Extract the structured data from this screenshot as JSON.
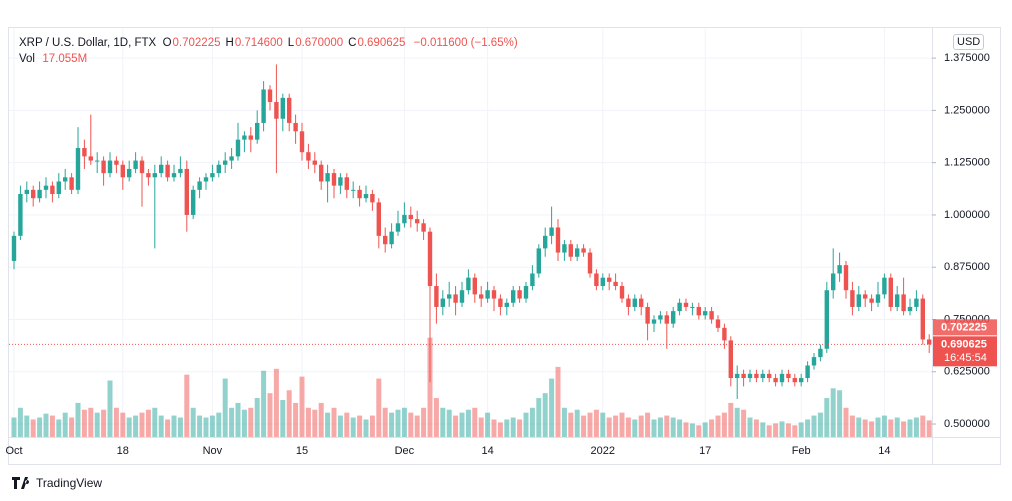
{
  "chart_data": {
    "type": "candlestick",
    "header": {
      "symbol": "XRP / U.S. Dollar, 1D, FTX",
      "ohlc": [
        {
          "label": "O",
          "value": "0.702225"
        },
        {
          "label": "H",
          "value": "0.714600"
        },
        {
          "label": "L",
          "value": "0.670000"
        },
        {
          "label": "C",
          "value": "0.690625"
        }
      ],
      "change": "−0.011600 (−1.65%)",
      "volume_label": "Vol",
      "volume_value": "17.055M"
    },
    "currency": "USD",
    "branding": "TradingView",
    "up_color": "#26a69a",
    "down_color": "#ef5350",
    "ylim": [
      0.469,
      1.447
    ],
    "yticks": [
      {
        "value": 0.5,
        "label": "0.500000"
      },
      {
        "value": 0.625,
        "label": "0.625000"
      },
      {
        "value": 0.75,
        "label": "0.750000"
      },
      {
        "value": 0.875,
        "label": "0.875000"
      },
      {
        "value": 1.0,
        "label": "1.000000"
      },
      {
        "value": 1.125,
        "label": "1.125000"
      },
      {
        "value": 1.25,
        "label": "1.250000"
      },
      {
        "value": 1.375,
        "label": "1.375000"
      }
    ],
    "volume_lim": [
      0,
      420
    ],
    "grid": true,
    "price_tags": {
      "open": {
        "value": 0.702225,
        "label": "0.702225"
      },
      "last": {
        "value": 0.690625,
        "label": "0.690625"
      },
      "countdown": "16:45:54"
    },
    "categories": [
      "Oct",
      null,
      null,
      null,
      null,
      null,
      null,
      null,
      null,
      null,
      null,
      null,
      null,
      null,
      null,
      null,
      null,
      "18",
      null,
      null,
      null,
      null,
      null,
      null,
      null,
      null,
      null,
      null,
      null,
      null,
      null,
      "Nov",
      null,
      null,
      null,
      null,
      null,
      null,
      null,
      null,
      null,
      null,
      null,
      null,
      null,
      "15",
      null,
      null,
      null,
      null,
      null,
      null,
      null,
      null,
      null,
      null,
      null,
      null,
      null,
      null,
      null,
      "Dec",
      null,
      null,
      null,
      null,
      null,
      null,
      null,
      null,
      null,
      null,
      null,
      null,
      "14",
      null,
      null,
      null,
      null,
      null,
      null,
      null,
      null,
      null,
      null,
      null,
      null,
      null,
      null,
      null,
      null,
      null,
      "2022",
      null,
      null,
      null,
      null,
      null,
      null,
      null,
      null,
      null,
      null,
      null,
      null,
      null,
      null,
      null,
      "17",
      null,
      null,
      null,
      null,
      null,
      null,
      null,
      null,
      null,
      null,
      null,
      null,
      null,
      null,
      "Feb",
      null,
      null,
      null,
      null,
      null,
      null,
      null,
      null,
      null,
      null,
      null,
      null,
      "14",
      null,
      null,
      null,
      null,
      null,
      null,
      null
    ],
    "ohlc": [
      [
        0.89,
        0.96,
        0.87,
        0.95
      ],
      [
        0.95,
        1.07,
        0.94,
        1.05
      ],
      [
        1.05,
        1.08,
        1.03,
        1.06
      ],
      [
        1.06,
        1.07,
        1.02,
        1.04
      ],
      [
        1.04,
        1.08,
        1.03,
        1.06
      ],
      [
        1.06,
        1.09,
        1.04,
        1.07
      ],
      [
        1.07,
        1.08,
        1.03,
        1.05
      ],
      [
        1.05,
        1.1,
        1.04,
        1.08
      ],
      [
        1.08,
        1.11,
        1.06,
        1.09
      ],
      [
        1.09,
        1.1,
        1.05,
        1.06
      ],
      [
        1.06,
        1.21,
        1.05,
        1.16
      ],
      [
        1.16,
        1.18,
        1.11,
        1.14
      ],
      [
        1.14,
        1.24,
        1.12,
        1.13
      ],
      [
        1.13,
        1.15,
        1.1,
        1.13
      ],
      [
        1.13,
        1.14,
        1.07,
        1.1
      ],
      [
        1.1,
        1.15,
        1.09,
        1.13
      ],
      [
        1.13,
        1.14,
        1.1,
        1.12
      ],
      [
        1.12,
        1.13,
        1.06,
        1.09
      ],
      [
        1.09,
        1.13,
        1.08,
        1.11
      ],
      [
        1.11,
        1.15,
        1.1,
        1.13
      ],
      [
        1.13,
        1.14,
        1.02,
        1.1
      ],
      [
        1.1,
        1.11,
        1.07,
        1.09
      ],
      [
        1.09,
        1.12,
        0.92,
        1.1
      ],
      [
        1.1,
        1.14,
        1.09,
        1.12
      ],
      [
        1.12,
        1.13,
        1.08,
        1.09
      ],
      [
        1.09,
        1.12,
        1.08,
        1.1
      ],
      [
        1.1,
        1.14,
        1.09,
        1.11
      ],
      [
        1.11,
        1.13,
        0.96,
        1.0
      ],
      [
        1.0,
        1.07,
        0.99,
        1.06
      ],
      [
        1.06,
        1.09,
        1.04,
        1.08
      ],
      [
        1.08,
        1.1,
        1.06,
        1.09
      ],
      [
        1.09,
        1.12,
        1.08,
        1.1
      ],
      [
        1.1,
        1.13,
        1.09,
        1.12
      ],
      [
        1.12,
        1.15,
        1.1,
        1.13
      ],
      [
        1.13,
        1.16,
        1.11,
        1.14
      ],
      [
        1.14,
        1.22,
        1.13,
        1.18
      ],
      [
        1.18,
        1.2,
        1.15,
        1.19
      ],
      [
        1.19,
        1.21,
        1.15,
        1.18
      ],
      [
        1.18,
        1.25,
        1.17,
        1.22
      ],
      [
        1.22,
        1.32,
        1.2,
        1.3
      ],
      [
        1.3,
        1.31,
        1.25,
        1.27
      ],
      [
        1.27,
        1.36,
        1.1,
        1.23
      ],
      [
        1.23,
        1.29,
        1.2,
        1.28
      ],
      [
        1.28,
        1.29,
        1.2,
        1.22
      ],
      [
        1.22,
        1.24,
        1.17,
        1.2
      ],
      [
        1.2,
        1.22,
        1.13,
        1.15
      ],
      [
        1.15,
        1.17,
        1.11,
        1.13
      ],
      [
        1.13,
        1.15,
        1.1,
        1.12
      ],
      [
        1.12,
        1.13,
        1.06,
        1.08
      ],
      [
        1.08,
        1.12,
        1.03,
        1.1
      ],
      [
        1.1,
        1.11,
        1.04,
        1.07
      ],
      [
        1.07,
        1.1,
        1.05,
        1.09
      ],
      [
        1.09,
        1.1,
        1.04,
        1.06
      ],
      [
        1.06,
        1.08,
        1.04,
        1.06
      ],
      [
        1.06,
        1.07,
        1.02,
        1.04
      ],
      [
        1.04,
        1.07,
        1.03,
        1.05
      ],
      [
        1.05,
        1.06,
        1.01,
        1.03
      ],
      [
        1.03,
        1.04,
        0.92,
        0.95
      ],
      [
        0.95,
        0.97,
        0.91,
        0.93
      ],
      [
        0.93,
        0.98,
        0.92,
        0.96
      ],
      [
        0.96,
        1.01,
        0.95,
        0.98
      ],
      [
        0.98,
        1.03,
        0.97,
        1.0
      ],
      [
        1.0,
        1.02,
        0.97,
        0.99
      ],
      [
        0.99,
        1.01,
        0.96,
        0.98
      ],
      [
        0.98,
        0.99,
        0.94,
        0.96
      ],
      [
        0.96,
        0.97,
        0.6,
        0.83
      ],
      [
        0.83,
        0.86,
        0.74,
        0.78
      ],
      [
        0.78,
        0.82,
        0.76,
        0.8
      ],
      [
        0.8,
        0.84,
        0.78,
        0.81
      ],
      [
        0.81,
        0.83,
        0.76,
        0.79
      ],
      [
        0.79,
        0.84,
        0.78,
        0.82
      ],
      [
        0.82,
        0.87,
        0.81,
        0.85
      ],
      [
        0.85,
        0.86,
        0.79,
        0.81
      ],
      [
        0.81,
        0.83,
        0.78,
        0.8
      ],
      [
        0.8,
        0.84,
        0.79,
        0.82
      ],
      [
        0.82,
        0.83,
        0.77,
        0.8
      ],
      [
        0.8,
        0.81,
        0.76,
        0.78
      ],
      [
        0.78,
        0.8,
        0.76,
        0.79
      ],
      [
        0.79,
        0.83,
        0.78,
        0.82
      ],
      [
        0.82,
        0.83,
        0.79,
        0.8
      ],
      [
        0.8,
        0.84,
        0.79,
        0.83
      ],
      [
        0.83,
        0.88,
        0.82,
        0.86
      ],
      [
        0.86,
        0.93,
        0.85,
        0.92
      ],
      [
        0.92,
        0.97,
        0.9,
        0.95
      ],
      [
        0.95,
        1.02,
        0.93,
        0.97
      ],
      [
        0.97,
        0.99,
        0.89,
        0.91
      ],
      [
        0.91,
        0.94,
        0.89,
        0.93
      ],
      [
        0.93,
        0.94,
        0.89,
        0.9
      ],
      [
        0.9,
        0.93,
        0.89,
        0.92
      ],
      [
        0.92,
        0.93,
        0.9,
        0.91
      ],
      [
        0.91,
        0.92,
        0.85,
        0.86
      ],
      [
        0.86,
        0.87,
        0.82,
        0.83
      ],
      [
        0.83,
        0.86,
        0.82,
        0.85
      ],
      [
        0.85,
        0.86,
        0.82,
        0.84
      ],
      [
        0.84,
        0.86,
        0.82,
        0.83
      ],
      [
        0.83,
        0.84,
        0.79,
        0.8
      ],
      [
        0.8,
        0.81,
        0.76,
        0.78
      ],
      [
        0.78,
        0.81,
        0.77,
        0.8
      ],
      [
        0.8,
        0.81,
        0.76,
        0.78
      ],
      [
        0.78,
        0.79,
        0.7,
        0.74
      ],
      [
        0.74,
        0.76,
        0.72,
        0.75
      ],
      [
        0.75,
        0.77,
        0.74,
        0.76
      ],
      [
        0.76,
        0.77,
        0.68,
        0.74
      ],
      [
        0.74,
        0.78,
        0.73,
        0.77
      ],
      [
        0.77,
        0.8,
        0.76,
        0.79
      ],
      [
        0.79,
        0.8,
        0.77,
        0.78
      ],
      [
        0.78,
        0.79,
        0.76,
        0.78
      ],
      [
        0.78,
        0.79,
        0.75,
        0.76
      ],
      [
        0.76,
        0.78,
        0.75,
        0.77
      ],
      [
        0.77,
        0.78,
        0.74,
        0.75
      ],
      [
        0.75,
        0.76,
        0.72,
        0.73
      ],
      [
        0.73,
        0.74,
        0.68,
        0.7
      ],
      [
        0.7,
        0.71,
        0.59,
        0.61
      ],
      [
        0.61,
        0.64,
        0.56,
        0.62
      ],
      [
        0.62,
        0.63,
        0.59,
        0.61
      ],
      [
        0.61,
        0.63,
        0.6,
        0.62
      ],
      [
        0.62,
        0.63,
        0.6,
        0.61
      ],
      [
        0.61,
        0.63,
        0.6,
        0.62
      ],
      [
        0.62,
        0.63,
        0.6,
        0.61
      ],
      [
        0.61,
        0.62,
        0.59,
        0.6
      ],
      [
        0.6,
        0.63,
        0.59,
        0.62
      ],
      [
        0.62,
        0.63,
        0.6,
        0.61
      ],
      [
        0.61,
        0.62,
        0.59,
        0.6
      ],
      [
        0.6,
        0.62,
        0.59,
        0.61
      ],
      [
        0.61,
        0.65,
        0.6,
        0.64
      ],
      [
        0.64,
        0.67,
        0.63,
        0.66
      ],
      [
        0.66,
        0.69,
        0.65,
        0.68
      ],
      [
        0.68,
        0.84,
        0.67,
        0.82
      ],
      [
        0.82,
        0.92,
        0.8,
        0.86
      ],
      [
        0.86,
        0.91,
        0.84,
        0.88
      ],
      [
        0.88,
        0.89,
        0.8,
        0.82
      ],
      [
        0.82,
        0.84,
        0.76,
        0.78
      ],
      [
        0.78,
        0.83,
        0.77,
        0.81
      ],
      [
        0.81,
        0.82,
        0.78,
        0.8
      ],
      [
        0.8,
        0.81,
        0.77,
        0.79
      ],
      [
        0.79,
        0.84,
        0.78,
        0.81
      ],
      [
        0.81,
        0.86,
        0.8,
        0.85
      ],
      [
        0.85,
        0.86,
        0.77,
        0.78
      ],
      [
        0.78,
        0.83,
        0.77,
        0.81
      ],
      [
        0.81,
        0.85,
        0.76,
        0.77
      ],
      [
        0.77,
        0.8,
        0.76,
        0.78
      ],
      [
        0.78,
        0.82,
        0.77,
        0.8
      ],
      [
        0.8,
        0.81,
        0.69,
        0.702225
      ],
      [
        0.702225,
        0.7146,
        0.67,
        0.690625
      ]
    ],
    "volumes": [
      20,
      30,
      22,
      18,
      20,
      24,
      22,
      18,
      25,
      20,
      35,
      28,
      30,
      25,
      28,
      58,
      30,
      25,
      20,
      22,
      25,
      28,
      30,
      22,
      18,
      22,
      20,
      64,
      30,
      22,
      20,
      22,
      25,
      60,
      30,
      35,
      28,
      30,
      40,
      68,
      45,
      70,
      38,
      48,
      35,
      62,
      30,
      28,
      35,
      25,
      30,
      22,
      25,
      20,
      22,
      18,
      22,
      60,
      30,
      25,
      28,
      30,
      25,
      22,
      30,
      102,
      40,
      30,
      28,
      22,
      25,
      28,
      30,
      20,
      25,
      18,
      15,
      18,
      20,
      18,
      25,
      30,
      40,
      45,
      60,
      72,
      30,
      25,
      28,
      22,
      25,
      28,
      25,
      20,
      22,
      25,
      20,
      18,
      22,
      25,
      18,
      20,
      22,
      20,
      18,
      15,
      14,
      12,
      15,
      18,
      22,
      25,
      35,
      30,
      28,
      20,
      18,
      15,
      12,
      14,
      16,
      14,
      12,
      15,
      18,
      22,
      25,
      40,
      50,
      48,
      30,
      22,
      20,
      18,
      16,
      20,
      22,
      18,
      20,
      16,
      18,
      20,
      22,
      17.055
    ]
  }
}
